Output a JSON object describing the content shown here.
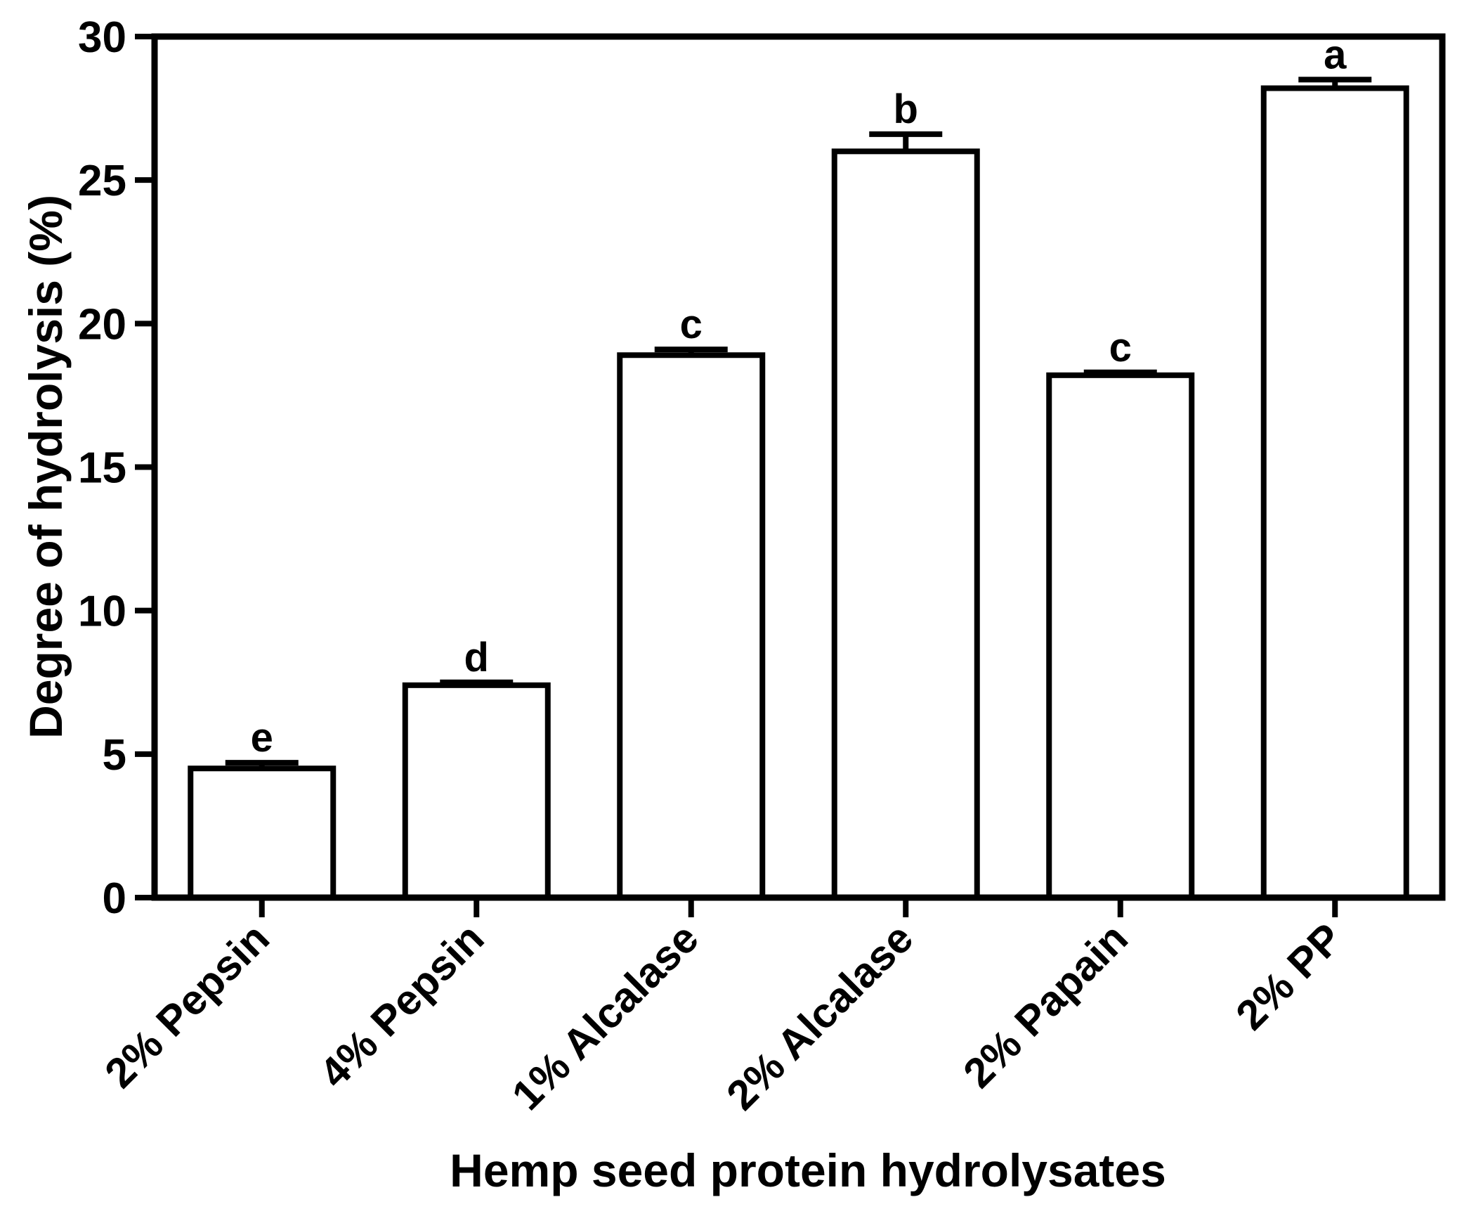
{
  "chart_data": {
    "type": "bar",
    "xlabel": "Hemp seed protein hydrolysates",
    "ylabel": "Degree of hydrolysis (%)",
    "ylim": [
      0,
      30
    ],
    "yticks": [
      0,
      5,
      10,
      15,
      20,
      25,
      30
    ],
    "categories": [
      "2% Pepsin",
      "4% Pepsin",
      "1% Alcalase",
      "2% Alcalase",
      "2% Papain",
      "2% PP"
    ],
    "values": [
      4.5,
      7.4,
      18.9,
      26.0,
      18.2,
      28.2
    ],
    "errors": [
      0.2,
      0.1,
      0.2,
      0.6,
      0.1,
      0.3
    ],
    "significance_letters": [
      "e",
      "d",
      "c",
      "b",
      "c",
      "a"
    ],
    "grid": false,
    "legend": "none",
    "colors": {
      "bar_fill": "#ffffff",
      "bar_stroke": "#000000",
      "axis": "#000000"
    }
  }
}
